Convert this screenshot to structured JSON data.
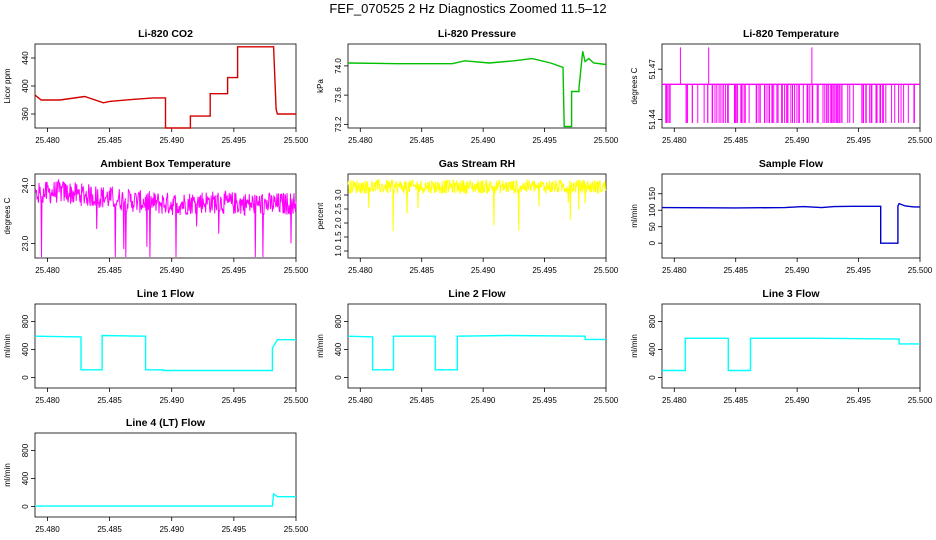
{
  "page": {
    "title": "FEF_070525  2 Hz Diagnostics Zoomed 11.5–12"
  },
  "chart_data": [
    {
      "type": "line",
      "title": "Li-820 CO2",
      "ylabel": "Licor ppm",
      "color": "#d40000",
      "xlim": [
        25.479,
        25.5
      ],
      "ylim": [
        340,
        460
      ],
      "yticks": [
        "360",
        "400",
        "440"
      ],
      "xticks": [
        "25.480",
        "25.485",
        "25.490",
        "25.495",
        "25.500"
      ],
      "x": [
        25.479,
        25.4795,
        25.481,
        25.483,
        25.4845,
        25.485,
        25.487,
        25.4885,
        25.4895,
        25.4895,
        25.4915,
        25.4915,
        25.4931,
        25.4931,
        25.4945,
        25.4945,
        25.4953,
        25.4953,
        25.4982,
        25.4984,
        25.4985,
        25.5
      ],
      "values": [
        387,
        380,
        380,
        385,
        376,
        378,
        381,
        383,
        383,
        340,
        340,
        357,
        357,
        389,
        389,
        412,
        412,
        456,
        456,
        367,
        360,
        360
      ]
    },
    {
      "type": "line",
      "title": "Li-820 Pressure",
      "ylabel": "kPa",
      "color": "#00c000",
      "xlim": [
        25.479,
        25.5
      ],
      "ylim": [
        73.15,
        74.3
      ],
      "yticks": [
        "73.2",
        "73.6",
        "74.0"
      ],
      "xticks": [
        "25.480",
        "25.485",
        "25.490",
        "25.495",
        "25.500"
      ],
      "x": [
        25.479,
        25.483,
        25.4875,
        25.4885,
        25.4905,
        25.4925,
        25.494,
        25.4955,
        25.4965,
        25.4966,
        25.4972,
        25.4972,
        25.4978,
        25.4978,
        25.4981,
        25.4983,
        25.4986,
        25.499,
        25.5
      ],
      "values": [
        74.04,
        74.03,
        74.03,
        74.07,
        74.04,
        74.07,
        74.1,
        74.04,
        73.98,
        73.17,
        73.17,
        73.65,
        73.65,
        73.7,
        74.2,
        74.06,
        74.1,
        74.04,
        74.02
      ]
    },
    {
      "type": "line",
      "title": "Li-820 Temperature",
      "ylabel": "degrees C",
      "color": "#ff00ff",
      "xlim": [
        25.479,
        25.5
      ],
      "ylim": [
        51.435,
        51.485
      ],
      "yticks": [
        "51.44",
        "51.47"
      ],
      "xticks": [
        "25.480",
        "25.485",
        "25.490",
        "25.495",
        "25.500"
      ],
      "x": [
        25.479,
        25.5
      ],
      "values": [
        51.461,
        51.461
      ],
      "baseline": 51.438,
      "spike_top": 51.483
    },
    {
      "type": "line",
      "title": "Ambient Box Temperature",
      "ylabel": "degrees C",
      "color": "#ff00ff",
      "xlim": [
        25.479,
        25.5
      ],
      "ylim": [
        22.75,
        24.2
      ],
      "yticks": [
        "23.0",
        "24.0"
      ],
      "xticks": [
        "25.480",
        "25.485",
        "25.490",
        "25.495",
        "25.500"
      ],
      "x": [
        25.479,
        25.481,
        25.4825,
        25.4845,
        25.4875,
        25.4878,
        25.4885,
        25.4905,
        25.4925,
        25.4945,
        25.4965,
        25.4985,
        25.5
      ],
      "values": [
        23.85,
        23.9,
        23.85,
        23.8,
        23.72,
        23.72,
        23.7,
        23.68,
        23.72,
        23.7,
        23.68,
        23.68,
        23.7
      ],
      "noise": 0.2
    },
    {
      "type": "line",
      "title": "Gas Stream RH",
      "ylabel": "percent",
      "color": "#ffff00",
      "xlim": [
        25.479,
        25.5
      ],
      "ylim": [
        0.75,
        3.75
      ],
      "yticks": [
        "1.0",
        "1.5",
        "2.0",
        "2.5",
        "3.0"
      ],
      "xticks": [
        "25.480",
        "25.485",
        "25.490",
        "25.495",
        "25.500"
      ],
      "x": [
        25.479,
        25.5
      ],
      "values": [
        3.3,
        3.3
      ],
      "noise": 0.25
    },
    {
      "type": "line",
      "title": "Sample Flow",
      "ylabel": "ml/min",
      "color": "#0000cc",
      "xlim": [
        25.479,
        25.5
      ],
      "ylim": [
        -45,
        210
      ],
      "yticks": [
        "0",
        "50",
        "100",
        "150"
      ],
      "xticks": [
        "25.480",
        "25.485",
        "25.490",
        "25.495",
        "25.500"
      ],
      "x": [
        25.479,
        25.485,
        25.489,
        25.4905,
        25.492,
        25.493,
        25.4945,
        25.4968,
        25.4968,
        25.4982,
        25.4982,
        25.4983,
        25.4988,
        25.4995,
        25.5
      ],
      "values": [
        108,
        107,
        108,
        111,
        108,
        111,
        112,
        112,
        0,
        0,
        112,
        120,
        113,
        110,
        110
      ]
    },
    {
      "type": "line",
      "title": "Line 1 Flow",
      "ylabel": "ml/min",
      "color": "#00ffff",
      "xlim": [
        25.479,
        25.5
      ],
      "ylim": [
        -150,
        1050
      ],
      "yticks": [
        "0",
        "400",
        "800"
      ],
      "xticks": [
        "25.480",
        "25.485",
        "25.490",
        "25.495",
        "25.500"
      ],
      "x": [
        25.479,
        25.4827,
        25.4827,
        25.4844,
        25.4844,
        25.4879,
        25.4879,
        25.4893,
        25.4893,
        25.4981,
        25.4981,
        25.4985,
        25.5
      ],
      "values": [
        590,
        580,
        110,
        110,
        600,
        590,
        110,
        110,
        100,
        100,
        420,
        540,
        540
      ]
    },
    {
      "type": "line",
      "title": "Line 2 Flow",
      "ylabel": "ml/min",
      "color": "#00ffff",
      "xlim": [
        25.479,
        25.5
      ],
      "ylim": [
        -150,
        1050
      ],
      "yticks": [
        "0",
        "400",
        "800"
      ],
      "xticks": [
        "25.480",
        "25.485",
        "25.490",
        "25.495",
        "25.500"
      ],
      "x": [
        25.479,
        25.481,
        25.481,
        25.4827,
        25.4827,
        25.4861,
        25.4861,
        25.4879,
        25.4879,
        25.492,
        25.4983,
        25.4983,
        25.5
      ],
      "values": [
        590,
        580,
        110,
        110,
        590,
        590,
        110,
        110,
        590,
        600,
        590,
        545,
        545
      ]
    },
    {
      "type": "line",
      "title": "Line 3 Flow",
      "ylabel": "ml/min",
      "color": "#00ffff",
      "xlim": [
        25.479,
        25.5
      ],
      "ylim": [
        -150,
        1050
      ],
      "yticks": [
        "0",
        "400",
        "800"
      ],
      "xticks": [
        "25.480",
        "25.485",
        "25.490",
        "25.495",
        "25.500"
      ],
      "x": [
        25.479,
        25.4809,
        25.4809,
        25.4844,
        25.4844,
        25.4862,
        25.4862,
        25.492,
        25.4983,
        25.4983,
        25.5
      ],
      "values": [
        100,
        100,
        560,
        560,
        100,
        100,
        560,
        560,
        550,
        480,
        480
      ]
    },
    {
      "type": "line",
      "title": "Line 4 (LT) Flow",
      "ylabel": "ml/min",
      "color": "#00ffff",
      "xlim": [
        25.479,
        25.5
      ],
      "ylim": [
        -150,
        1050
      ],
      "yticks": [
        "0",
        "400",
        "800"
      ],
      "xticks": [
        "25.480",
        "25.485",
        "25.490",
        "25.495",
        "25.500"
      ],
      "x": [
        25.479,
        25.4981,
        25.4982,
        25.4985,
        25.5
      ],
      "values": [
        5,
        5,
        180,
        140,
        140
      ]
    }
  ]
}
